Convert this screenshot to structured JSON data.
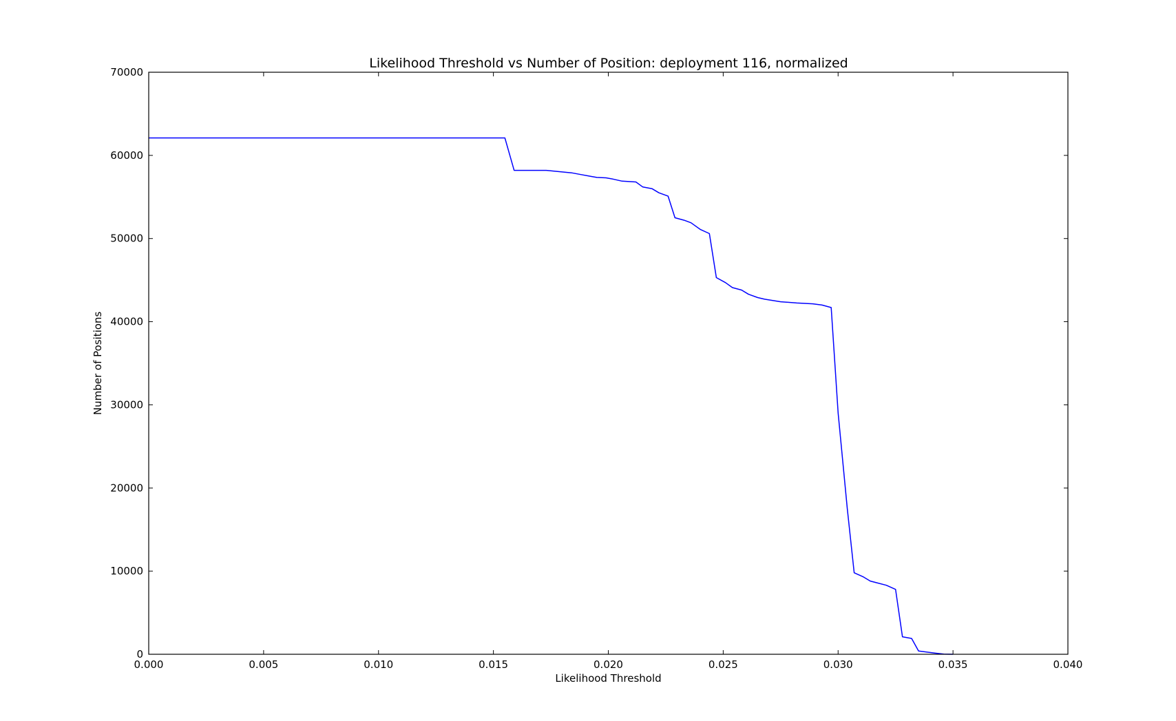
{
  "chart_data": {
    "type": "line",
    "title": "Likelihood Threshold vs Number of Position: deployment 116, normalized",
    "xlabel": "Likelihood Threshold",
    "ylabel": "Number of Positions",
    "xlim": [
      0.0,
      0.04
    ],
    "ylim": [
      0,
      70000
    ],
    "grid": false,
    "line_color": "#0000ff",
    "x_ticks": [
      "0.000",
      "0.005",
      "0.010",
      "0.015",
      "0.020",
      "0.025",
      "0.030",
      "0.035",
      "0.040"
    ],
    "y_ticks": [
      "0",
      "10000",
      "20000",
      "30000",
      "40000",
      "50000",
      "60000",
      "70000"
    ],
    "series": [
      {
        "x": [
          0.0,
          0.0155,
          0.0159,
          0.0173,
          0.0184,
          0.0188,
          0.0192,
          0.0195,
          0.0199,
          0.0202,
          0.0206,
          0.0212,
          0.0215,
          0.0219,
          0.0222,
          0.0226,
          0.0229,
          0.0233,
          0.0236,
          0.024,
          0.0244,
          0.0247,
          0.0251,
          0.0254,
          0.0258,
          0.0261,
          0.0265,
          0.0268,
          0.0275,
          0.0282,
          0.0289,
          0.0293,
          0.0297,
          0.03,
          0.0304,
          0.0307,
          0.0311,
          0.0314,
          0.0321,
          0.0325,
          0.0328,
          0.0332,
          0.0335,
          0.0342,
          0.0346,
          0.035
        ],
        "y": [
          62100,
          62100,
          58200,
          58200,
          57900,
          57700,
          57500,
          57350,
          57300,
          57150,
          56900,
          56800,
          56200,
          56000,
          55500,
          55100,
          52500,
          52200,
          51900,
          51100,
          50600,
          45300,
          44700,
          44100,
          43800,
          43300,
          42900,
          42700,
          42400,
          42250,
          42150,
          42000,
          41700,
          29000,
          17500,
          9800,
          9300,
          8800,
          8300,
          7800,
          2100,
          1900,
          400,
          150,
          20,
          0
        ]
      }
    ]
  }
}
